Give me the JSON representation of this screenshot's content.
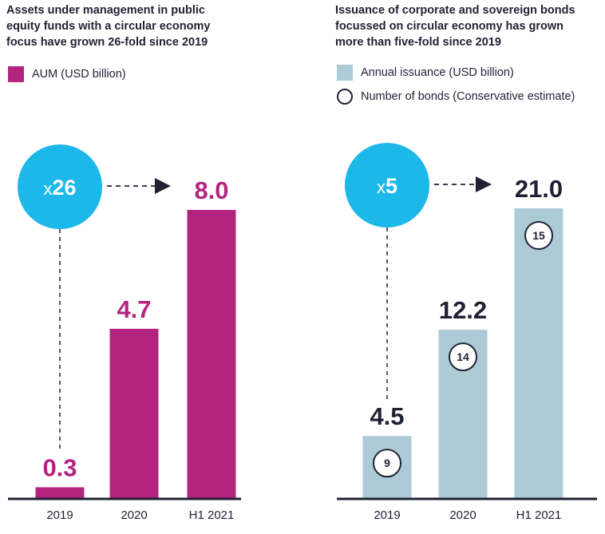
{
  "colors": {
    "aum": "#b3247f",
    "issuance": "#adcbd6",
    "badge": "#1bb8e9",
    "text": "#1f2233",
    "axis": "#1f2233"
  },
  "left_panel": {
    "title_lines": [
      "Assets under management in public",
      "equity funds with a circular economy",
      "focus have grown 26-fold since 2019"
    ],
    "legend": {
      "swatch_label": "AUM (USD billion)"
    },
    "badge": {
      "prefix": "x",
      "number": "26"
    }
  },
  "right_panel": {
    "title_lines": [
      "Issuance of corporate and sovereign bonds",
      "focussed on circular economy has grown",
      "more than five-fold since 2019"
    ],
    "legend": {
      "swatch_label": "Annual issuance (USD billion)",
      "circle_label": "Number of bonds (Conservative estimate)"
    },
    "badge": {
      "prefix": "x",
      "number": "5"
    }
  },
  "chart_data": [
    {
      "type": "bar",
      "title": "Assets under management in public equity funds with a circular economy focus have grown 26-fold since 2019",
      "categories": [
        "2019",
        "2020",
        "H1 2021"
      ],
      "series": [
        {
          "name": "AUM (USD billion)",
          "values": [
            0.3,
            4.7,
            8.0
          ],
          "labels": [
            "0.3",
            "4.7",
            "8.0"
          ]
        }
      ],
      "ylim": [
        0,
        8.0
      ],
      "grid": false,
      "legend": "top-left",
      "annotation": "x26"
    },
    {
      "type": "bar",
      "title": "Issuance of corporate and sovereign bonds focussed on circular economy has grown more than five-fold since 2019",
      "categories": [
        "2019",
        "2020",
        "H1 2021"
      ],
      "series": [
        {
          "name": "Annual issuance (USD billion)",
          "values": [
            4.5,
            12.2,
            21.0
          ],
          "labels": [
            "4.5",
            "12.2",
            "21.0"
          ]
        },
        {
          "name": "Number of bonds (Conservative estimate)",
          "values": [
            9,
            14,
            15
          ]
        }
      ],
      "ylim": [
        0,
        21.0
      ],
      "grid": false,
      "legend": "top-left",
      "annotation": "x5"
    }
  ]
}
